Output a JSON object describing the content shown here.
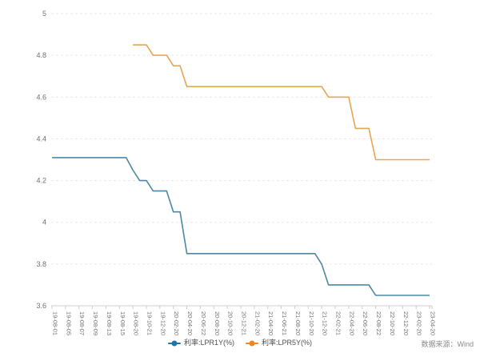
{
  "chart_data": {
    "type": "line",
    "x_categories": [
      "19-08-01",
      "19-08-02",
      "19-08-05",
      "19-08-06",
      "19-08-07",
      "19-08-08",
      "19-08-09",
      "19-08-12",
      "19-08-13",
      "19-08-14",
      "19-08-15",
      "19-08-19",
      "19-08-20",
      "19-09-20",
      "19-10-21",
      "19-11-20",
      "19-12-20",
      "20-01-20",
      "20-02-20",
      "20-03-20",
      "20-04-20",
      "20-05-20",
      "20-06-22",
      "20-07-20",
      "20-08-20",
      "20-09-21",
      "20-10-20",
      "20-11-20",
      "20-12-21",
      "21-01-20",
      "21-02-20",
      "21-03-22",
      "21-04-20",
      "21-05-20",
      "21-06-21",
      "21-07-20",
      "21-08-20",
      "21-09-22",
      "21-10-20",
      "21-11-22",
      "21-12-20",
      "22-01-20",
      "22-02-21",
      "22-03-21",
      "22-04-20",
      "22-05-20",
      "22-06-20",
      "22-07-20",
      "22-08-22",
      "22-09-20",
      "22-10-20",
      "22-11-21",
      "22-12-20",
      "23-01-20",
      "23-02-20",
      "23-03-20",
      "23-04-20"
    ],
    "x_label_every": 2,
    "series": [
      {
        "name": "利率:LPR1Y(%)",
        "line_color": "#4d87a3",
        "marker_color": "#1f77a4",
        "values": [
          4.31,
          4.31,
          4.31,
          4.31,
          4.31,
          4.31,
          4.31,
          4.31,
          4.31,
          4.31,
          4.31,
          4.31,
          4.25,
          4.2,
          4.2,
          4.15,
          4.15,
          4.15,
          4.05,
          4.05,
          3.85,
          3.85,
          3.85,
          3.85,
          3.85,
          3.85,
          3.85,
          3.85,
          3.85,
          3.85,
          3.85,
          3.85,
          3.85,
          3.85,
          3.85,
          3.85,
          3.85,
          3.85,
          3.85,
          3.85,
          3.8,
          3.7,
          3.7,
          3.7,
          3.7,
          3.7,
          3.7,
          3.7,
          3.65,
          3.65,
          3.65,
          3.65,
          3.65,
          3.65,
          3.65,
          3.65,
          3.65
        ]
      },
      {
        "name": "利率:LPR5Y(%)",
        "line_color": "#e6a553",
        "marker_color": "#f0861f",
        "values": [
          null,
          null,
          null,
          null,
          null,
          null,
          null,
          null,
          null,
          null,
          null,
          null,
          4.85,
          4.85,
          4.85,
          4.8,
          4.8,
          4.8,
          4.75,
          4.75,
          4.65,
          4.65,
          4.65,
          4.65,
          4.65,
          4.65,
          4.65,
          4.65,
          4.65,
          4.65,
          4.65,
          4.65,
          4.65,
          4.65,
          4.65,
          4.65,
          4.65,
          4.65,
          4.65,
          4.65,
          4.65,
          4.6,
          4.6,
          4.6,
          4.6,
          4.45,
          4.45,
          4.45,
          4.3,
          4.3,
          4.3,
          4.3,
          4.3,
          4.3,
          4.3,
          4.3,
          4.3
        ]
      }
    ],
    "y_ticks": [
      3.6,
      3.8,
      4,
      4.2,
      4.4,
      4.6,
      4.8,
      5
    ],
    "ylim": [
      3.6,
      5
    ],
    "grid": true,
    "legend_position": "bottom"
  },
  "footer": {
    "source": "数据来源：Wind"
  }
}
